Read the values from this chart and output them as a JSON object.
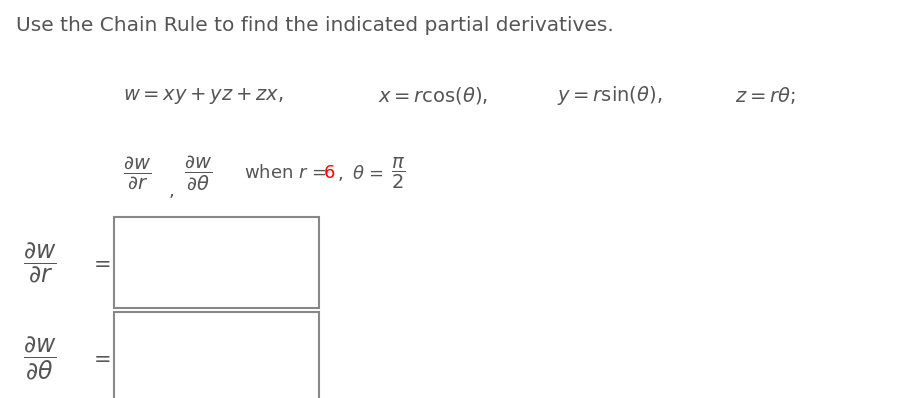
{
  "background_color": "#ffffff",
  "title_text": "Use the Chain Rule to find the indicated partial derivatives.",
  "title_color": "#555555",
  "equation_color": "#555555",
  "red_color": "#ff0000",
  "box_edge_color": "#888888",
  "figsize": [
    9.1,
    3.98
  ],
  "dpi": 100
}
